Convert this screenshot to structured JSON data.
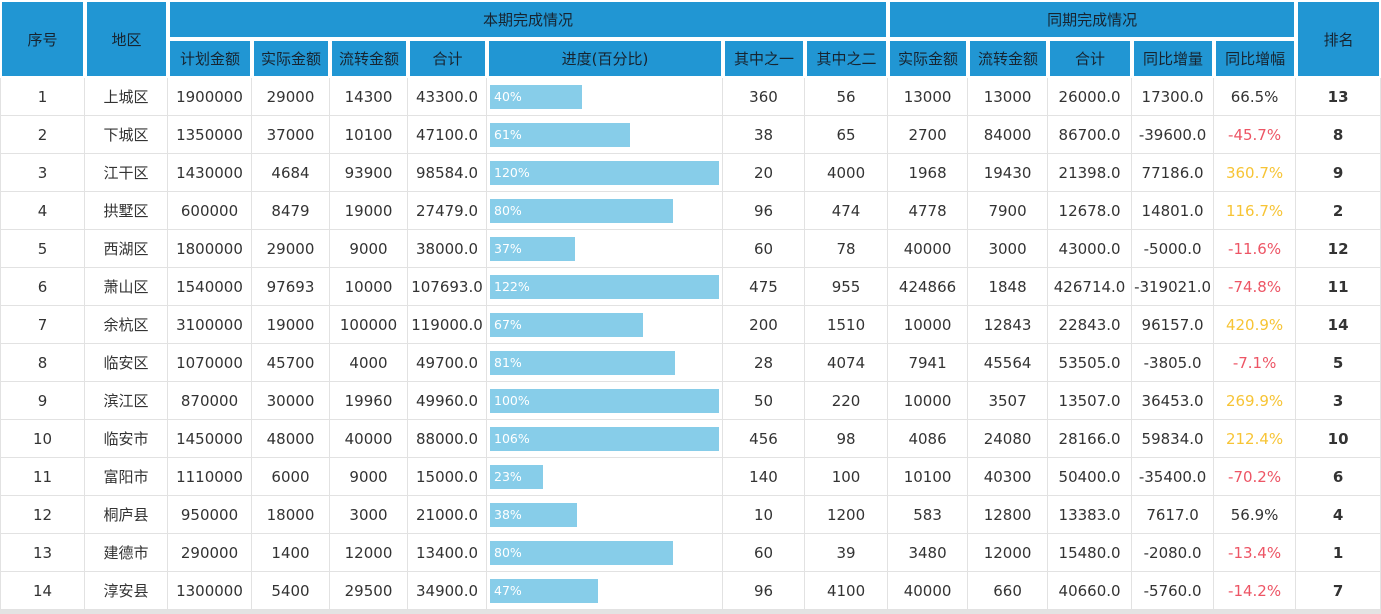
{
  "colors": {
    "header_bg": "#2196d3",
    "bar": "#87cde9",
    "rate_negative": "#ed5565",
    "rate_high": "#f7c435",
    "rate_default": "#333333"
  },
  "table": {
    "header": {
      "col_serial": "序号",
      "col_region": "地区",
      "group_current": "本期完成情况",
      "group_previous": "同期完成情况",
      "col_rank": "排名",
      "current_cols": [
        "计划金额",
        "实际金额",
        "流转金额",
        "合计",
        "进度(百分比)",
        "其中之一",
        "其中之二"
      ],
      "previous_cols": [
        "实际金额",
        "流转金额",
        "合计",
        "同比增量",
        "同比增幅"
      ]
    },
    "rows": [
      {
        "serial": "1",
        "region": "上城区",
        "plan": "1900000",
        "actual": "29000",
        "transfer": "14300",
        "total": "43300.0",
        "progress_pct": 40,
        "progress_label": "40%",
        "part1": "360",
        "part2": "56",
        "prev_actual": "13000",
        "prev_transfer": "13000",
        "prev_total": "26000.0",
        "yoy_delta": "17300.0",
        "yoy_rate": "66.5%",
        "rate_tone": "default",
        "rank": "13"
      },
      {
        "serial": "2",
        "region": "下城区",
        "plan": "1350000",
        "actual": "37000",
        "transfer": "10100",
        "total": "47100.0",
        "progress_pct": 61,
        "progress_label": "61%",
        "part1": "38",
        "part2": "65",
        "prev_actual": "2700",
        "prev_transfer": "84000",
        "prev_total": "86700.0",
        "yoy_delta": "-39600.0",
        "yoy_rate": "-45.7%",
        "rate_tone": "negative",
        "rank": "8"
      },
      {
        "serial": "3",
        "region": "江干区",
        "plan": "1430000",
        "actual": "4684",
        "transfer": "93900",
        "total": "98584.0",
        "progress_pct": 120,
        "progress_label": "120%",
        "part1": "20",
        "part2": "4000",
        "prev_actual": "1968",
        "prev_transfer": "19430",
        "prev_total": "21398.0",
        "yoy_delta": "77186.0",
        "yoy_rate": "360.7%",
        "rate_tone": "high",
        "rank": "9"
      },
      {
        "serial": "4",
        "region": "拱墅区",
        "plan": "600000",
        "actual": "8479",
        "transfer": "19000",
        "total": "27479.0",
        "progress_pct": 80,
        "progress_label": "80%",
        "part1": "96",
        "part2": "474",
        "prev_actual": "4778",
        "prev_transfer": "7900",
        "prev_total": "12678.0",
        "yoy_delta": "14801.0",
        "yoy_rate": "116.7%",
        "rate_tone": "high",
        "rank": "2"
      },
      {
        "serial": "5",
        "region": "西湖区",
        "plan": "1800000",
        "actual": "29000",
        "transfer": "9000",
        "total": "38000.0",
        "progress_pct": 37,
        "progress_label": "37%",
        "part1": "60",
        "part2": "78",
        "prev_actual": "40000",
        "prev_transfer": "3000",
        "prev_total": "43000.0",
        "yoy_delta": "-5000.0",
        "yoy_rate": "-11.6%",
        "rate_tone": "negative",
        "rank": "12"
      },
      {
        "serial": "6",
        "region": "萧山区",
        "plan": "1540000",
        "actual": "97693",
        "transfer": "10000",
        "total": "107693.0",
        "progress_pct": 122,
        "progress_label": "122%",
        "part1": "475",
        "part2": "955",
        "prev_actual": "424866",
        "prev_transfer": "1848",
        "prev_total": "426714.0",
        "yoy_delta": "-319021.0",
        "yoy_rate": "-74.8%",
        "rate_tone": "negative",
        "rank": "11"
      },
      {
        "serial": "7",
        "region": "余杭区",
        "plan": "3100000",
        "actual": "19000",
        "transfer": "100000",
        "total": "119000.0",
        "progress_pct": 67,
        "progress_label": "67%",
        "part1": "200",
        "part2": "1510",
        "prev_actual": "10000",
        "prev_transfer": "12843",
        "prev_total": "22843.0",
        "yoy_delta": "96157.0",
        "yoy_rate": "420.9%",
        "rate_tone": "high",
        "rank": "14"
      },
      {
        "serial": "8",
        "region": "临安区",
        "plan": "1070000",
        "actual": "45700",
        "transfer": "4000",
        "total": "49700.0",
        "progress_pct": 81,
        "progress_label": "81%",
        "part1": "28",
        "part2": "4074",
        "prev_actual": "7941",
        "prev_transfer": "45564",
        "prev_total": "53505.0",
        "yoy_delta": "-3805.0",
        "yoy_rate": "-7.1%",
        "rate_tone": "negative",
        "rank": "5"
      },
      {
        "serial": "9",
        "region": "滨江区",
        "plan": "870000",
        "actual": "30000",
        "transfer": "19960",
        "total": "49960.0",
        "progress_pct": 100,
        "progress_label": "100%",
        "part1": "50",
        "part2": "220",
        "prev_actual": "10000",
        "prev_transfer": "3507",
        "prev_total": "13507.0",
        "yoy_delta": "36453.0",
        "yoy_rate": "269.9%",
        "rate_tone": "high",
        "rank": "3"
      },
      {
        "serial": "10",
        "region": "临安市",
        "plan": "1450000",
        "actual": "48000",
        "transfer": "40000",
        "total": "88000.0",
        "progress_pct": 106,
        "progress_label": "106%",
        "part1": "456",
        "part2": "98",
        "prev_actual": "4086",
        "prev_transfer": "24080",
        "prev_total": "28166.0",
        "yoy_delta": "59834.0",
        "yoy_rate": "212.4%",
        "rate_tone": "high",
        "rank": "10"
      },
      {
        "serial": "11",
        "region": "富阳市",
        "plan": "1110000",
        "actual": "6000",
        "transfer": "9000",
        "total": "15000.0",
        "progress_pct": 23,
        "progress_label": "23%",
        "part1": "140",
        "part2": "100",
        "prev_actual": "10100",
        "prev_transfer": "40300",
        "prev_total": "50400.0",
        "yoy_delta": "-35400.0",
        "yoy_rate": "-70.2%",
        "rate_tone": "negative",
        "rank": "6"
      },
      {
        "serial": "12",
        "region": "桐庐县",
        "plan": "950000",
        "actual": "18000",
        "transfer": "3000",
        "total": "21000.0",
        "progress_pct": 38,
        "progress_label": "38%",
        "part1": "10",
        "part2": "1200",
        "prev_actual": "583",
        "prev_transfer": "12800",
        "prev_total": "13383.0",
        "yoy_delta": "7617.0",
        "yoy_rate": "56.9%",
        "rate_tone": "default",
        "rank": "4"
      },
      {
        "serial": "13",
        "region": "建德市",
        "plan": "290000",
        "actual": "1400",
        "transfer": "12000",
        "total": "13400.0",
        "progress_pct": 80,
        "progress_label": "80%",
        "part1": "60",
        "part2": "39",
        "prev_actual": "3480",
        "prev_transfer": "12000",
        "prev_total": "15480.0",
        "yoy_delta": "-2080.0",
        "yoy_rate": "-13.4%",
        "rate_tone": "negative",
        "rank": "1"
      },
      {
        "serial": "14",
        "region": "淳安县",
        "plan": "1300000",
        "actual": "5400",
        "transfer": "29500",
        "total": "34900.0",
        "progress_pct": 47,
        "progress_label": "47%",
        "part1": "96",
        "part2": "4100",
        "prev_actual": "40000",
        "prev_transfer": "660",
        "prev_total": "40660.0",
        "yoy_delta": "-5760.0",
        "yoy_rate": "-14.2%",
        "rate_tone": "negative",
        "rank": "7"
      }
    ]
  }
}
